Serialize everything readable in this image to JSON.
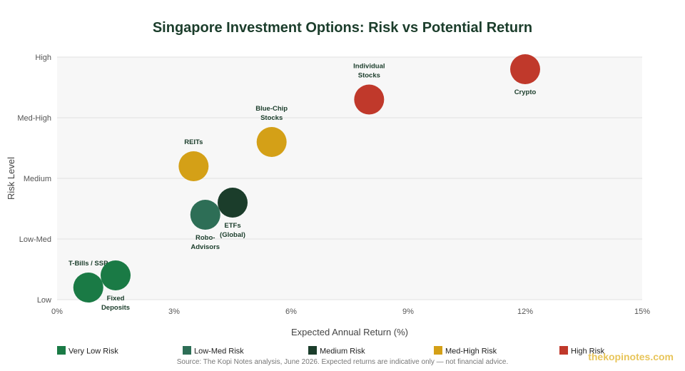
{
  "chart_data": {
    "type": "scatter",
    "title": "Singapore Investment Options: Risk vs Potential Return",
    "xlabel": "Expected Annual Return (%)",
    "ylabel": "Risk Level",
    "xlim": [
      0,
      15
    ],
    "ylim": [
      1,
      5
    ],
    "x_ticks": [
      {
        "value": 0,
        "label": "0%"
      },
      {
        "value": 3,
        "label": "3%"
      },
      {
        "value": 6,
        "label": "6%"
      },
      {
        "value": 9,
        "label": "9%"
      },
      {
        "value": 12,
        "label": "12%"
      },
      {
        "value": 15,
        "label": "15%"
      }
    ],
    "y_ticks": [
      {
        "value": 1,
        "label": "Low"
      },
      {
        "value": 2,
        "label": "Low-Med"
      },
      {
        "value": 3,
        "label": "Medium"
      },
      {
        "value": 4,
        "label": "Med-High"
      },
      {
        "value": 5,
        "label": "High"
      }
    ],
    "grid": true,
    "legend_position": "bottom",
    "categories": [
      {
        "key": "very_low",
        "name": "Very Low Risk",
        "color": "#1a7a45"
      },
      {
        "key": "low_med",
        "name": "Low-Med Risk",
        "color": "#2d6e56"
      },
      {
        "key": "medium",
        "name": "Medium Risk",
        "color": "#1b3d2b"
      },
      {
        "key": "med_high",
        "name": "Med-High Risk",
        "color": "#d4a017"
      },
      {
        "key": "high",
        "name": "High Risk",
        "color": "#c0392b"
      }
    ],
    "points": [
      {
        "label": [
          "T-Bills / SSP"
        ],
        "x": 0.8,
        "y": 1.2,
        "category": "very_low",
        "label_pos": "above"
      },
      {
        "label": [
          "Fixed",
          "Deposits"
        ],
        "x": 1.5,
        "y": 1.4,
        "category": "very_low",
        "label_pos": "below"
      },
      {
        "label": [
          "Robo-",
          "Advisors"
        ],
        "x": 3.8,
        "y": 2.4,
        "category": "low_med",
        "label_pos": "below"
      },
      {
        "label": [
          "ETFs",
          "(Global)"
        ],
        "x": 4.5,
        "y": 2.6,
        "category": "medium",
        "label_pos": "below"
      },
      {
        "label": [
          "REITs"
        ],
        "x": 3.5,
        "y": 3.2,
        "category": "med_high",
        "label_pos": "above"
      },
      {
        "label": [
          "Blue-Chip",
          "Stocks"
        ],
        "x": 5.5,
        "y": 3.6,
        "category": "med_high",
        "label_pos": "above"
      },
      {
        "label": [
          "Individual",
          "Stocks"
        ],
        "x": 8.0,
        "y": 4.3,
        "category": "high",
        "label_pos": "above"
      },
      {
        "label": [
          "Crypto"
        ],
        "x": 12.0,
        "y": 4.8,
        "category": "high",
        "label_pos": "below"
      }
    ]
  },
  "footer": {
    "source": "Source: The Kopi Notes analysis, June 2026. Expected returns are indicative only — not financial advice.",
    "watermark": "thekopinotes.com"
  }
}
